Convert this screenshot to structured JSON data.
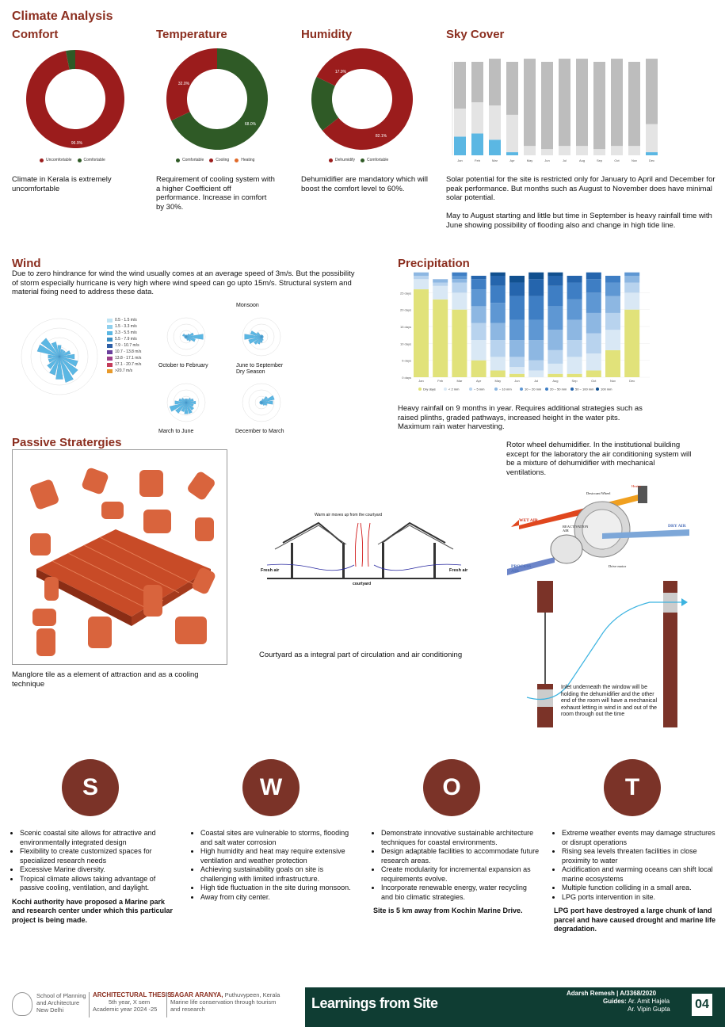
{
  "header": {
    "title": "Climate Analysis"
  },
  "comfort": {
    "title": "Comfort",
    "slice_major": "96.9%",
    "legend": [
      "Uncomfortable",
      "Comfortable"
    ],
    "desc": "Climate in Kerala is extremely uncomfortable",
    "chart_data": {
      "type": "pie",
      "categories": [
        "Uncomfortable",
        "Comfortable"
      ],
      "values": [
        96.9,
        3.1
      ]
    }
  },
  "temperature": {
    "title": "Temperature",
    "slice_a": "32.0%",
    "slice_b": "68.0%",
    "legend": [
      "Comfortable",
      "Cooling",
      "Heating"
    ],
    "desc": "Requirement of cooling system with a higher Coefficient off performance. Increase in comfort by 30%.",
    "chart_data": {
      "type": "pie",
      "categories": [
        "Comfortable",
        "Cooling"
      ],
      "values": [
        68.0,
        32.0
      ]
    }
  },
  "humidity": {
    "title": "Humidity",
    "slice_a": "17.9%",
    "slice_b": "82.1%",
    "legend": [
      "Dehumidify",
      "Comfortable"
    ],
    "desc": "Dehumidifier are mandatory which will boost the comfort level to 60%.",
    "chart_data": {
      "type": "pie",
      "categories": [
        "Dehumidify",
        "Comfortable"
      ],
      "values": [
        82.1,
        17.9
      ]
    }
  },
  "sky": {
    "title": "Sky Cover",
    "desc1": "Solar potential for the site is restricted only for January to April and December for peak performance. But months such as August to November does have minimal solar potential.",
    "desc2": "May to August starting and little but time in September is heavy rainfall time with June showing possibility of flooding also and change in high tide line.",
    "chart_data": {
      "type": "bar",
      "categories": [
        "Jan",
        "Feb",
        "Mar",
        "Apr",
        "May",
        "Jun",
        "Jul",
        "Aug",
        "Sep",
        "Oct",
        "Nov",
        "Dec"
      ],
      "series": [
        {
          "name": "sunny",
          "values": [
            6,
            7,
            5,
            1,
            0,
            0,
            0,
            0,
            0,
            0,
            0,
            1
          ]
        },
        {
          "name": "partly",
          "values": [
            9,
            10,
            11,
            12,
            3,
            2,
            3,
            3,
            2,
            3,
            3,
            9
          ]
        },
        {
          "name": "overcast",
          "values": [
            15,
            13,
            15,
            17,
            28,
            28,
            28,
            28,
            28,
            28,
            27,
            21
          ]
        }
      ]
    }
  },
  "wind": {
    "title": "Wind",
    "desc": "Due to zero hindrance for wind the wind usually comes at an average speed of 3m/s. But the possibility of storm especially hurricane is very high where wind speed can go upto 15m/s. Structural system and material fixing need to address these data.",
    "legend": [
      "0.5 - 1.5 m/s",
      "1.5 - 3.3 m/s",
      "3.3 - 5.5 m/s",
      "5.5 - 7.9 m/s",
      "7.9 - 10.7 m/s",
      "10.7 - 13.8 m/s",
      "13.8 - 17.1 m/s",
      "17.1 - 20.7 m/s",
      ">20.7 m/s"
    ],
    "legend_colors": [
      "#bfe4f4",
      "#8fd0ee",
      "#5bb7e3",
      "#3a8ec4",
      "#2d5fa6",
      "#6a3f9c",
      "#9c3f8a",
      "#c43c5b",
      "#e89a2b"
    ],
    "labels": [
      "Monsoon",
      "October to February",
      "June to September",
      "Dry Season",
      "March to June",
      "December to March"
    ]
  },
  "precip": {
    "title": "Precipitation",
    "desc": "Heavy rainfall on 9 months in year. Requires additional strategies such as raised plinths, graded pathways, increased height in the water pits. Maximum rain water harvesting.",
    "yticks": [
      "25 days",
      "20 days",
      "15 days",
      "10 days",
      "5 days",
      "0 days"
    ],
    "legend": [
      "Dry days",
      "< 2 mm",
      "~ 5 mm",
      "~ 10 mm",
      "10 ~ 20 mm",
      "20 ~ 50 mm",
      "50 ~ 100 mm",
      "100 mm"
    ],
    "colors": [
      "#e1e27a",
      "#d9e8f5",
      "#b8d3ee",
      "#8db7e2",
      "#5e97d3",
      "#3e7ec4",
      "#2565ad",
      "#11508f"
    ],
    "chart_data": {
      "type": "bar",
      "categories": [
        "Jan",
        "Feb",
        "Mar",
        "Apr",
        "May",
        "Jun",
        "Jul",
        "Aug",
        "Sep",
        "Oct",
        "Nov",
        "Dec"
      ],
      "series": [
        {
          "name": "Dry days",
          "values": [
            26,
            23,
            20,
            5,
            2,
            1,
            0,
            1,
            1,
            2,
            8,
            20
          ]
        },
        {
          "name": "< 2 mm",
          "values": [
            3,
            4,
            5,
            6,
            4,
            2,
            2,
            3,
            5,
            5,
            6,
            5
          ]
        },
        {
          "name": "~ 5 mm",
          "values": [
            1,
            1,
            3,
            5,
            5,
            3,
            3,
            4,
            5,
            6,
            5,
            3
          ]
        },
        {
          "name": "~ 10 mm",
          "values": [
            1,
            1,
            1,
            5,
            5,
            5,
            6,
            6,
            6,
            6,
            5,
            2
          ]
        },
        {
          "name": "10 ~ 20 mm",
          "values": [
            0,
            0,
            1,
            5,
            6,
            6,
            6,
            7,
            6,
            6,
            4,
            1
          ]
        },
        {
          "name": "20 ~ 50 mm",
          "values": [
            0,
            0,
            1,
            3,
            5,
            7,
            7,
            6,
            5,
            4,
            2,
            0
          ]
        },
        {
          "name": "50 ~ 100 mm",
          "values": [
            0,
            0,
            0,
            1,
            3,
            4,
            5,
            3,
            2,
            2,
            0,
            0
          ]
        },
        {
          "name": "100 mm",
          "values": [
            0,
            0,
            0,
            0,
            1,
            2,
            2,
            1,
            0,
            0,
            0,
            0
          ]
        }
      ]
    }
  },
  "passive": {
    "title": "Passive Stratergies",
    "tile_caption": "Manglore tile as a element of attraction and as a cooling technique",
    "court_top": "Warm air moves up from the courtyard",
    "court_fresh_left": "Fresh air",
    "court_fresh_right": "Fresh air",
    "court_label": "courtyard",
    "court_caption": "Courtyard as a integral part of circulation and air conditioning",
    "rotor_text": "Rotor wheel dehumidifier. In the institutional building except for the laboratory the air conditioning system will be a mixture of dehumidifier with mechanical ventilations.",
    "rotor_labels": {
      "wet": "WET AIR",
      "dry": "DRY AIR",
      "process": "PROCESS AIR",
      "react": "REACTIVATION AIR",
      "heater": "Heater",
      "desiccant": "Desiccant Wheel",
      "drive": "Drive motor"
    },
    "inlet_text": "Inlet underneath the window will be holding the dehumidifier and the other end of the room will have a mechanical exhaust letting in wind in and out of the room through out the time"
  },
  "swot": [
    {
      "letter": "S",
      "items": [
        "Scenic coastal site allows for attractive and environmentally integrated design",
        "Flexibility to create customized spaces for specialized research needs",
        "Excessive Marine diversity.",
        "Tropical climate allows taking advantage of passive cooling, ventilation, and daylight."
      ],
      "bold": "Kochi authority have proposed a Marine park and research center under which this particular project is being made."
    },
    {
      "letter": "W",
      "items": [
        " Coastal sites are vulnerable to storms, flooding and salt water corrosion",
        "High humidity and heat may require extensive ventilation and weather protection",
        "Achieving sustainability goals on site is challenging with limited infrastructure.",
        "High tide fluctuation in the site during monsoon.",
        "Away from city center."
      ],
      "bold": ""
    },
    {
      "letter": "O",
      "items": [
        "Demonstrate innovative sustainable architecture techniques for coastal environments.",
        "Design adaptable facilities to accommodate future research areas.",
        "Create modularity for incremental expansion as requirements evolve.",
        "Incorporate renewable energy, water recycling and bio climatic strategies."
      ],
      "bold": "Site is 5 km away from Kochin Marine Drive."
    },
    {
      "letter": "T",
      "items": [
        "Extreme weather events may damage structures or disrupt operations",
        "Rising sea levels threaten facilities in close proximity to water",
        "Acidification and warming oceans can shift local marine ecosystems",
        "Multiple function colliding in a small area.",
        "LPG ports intervention in site."
      ],
      "bold": "LPG port have destroyed a large chunk of land parcel and have caused drought and marine life degradation."
    }
  ],
  "footer": {
    "school": [
      "School of Planning",
      "and Architecture",
      "New Delhi"
    ],
    "thesis_title": "ARCHITECTURAL THESIS",
    "thesis_sub": [
      "5th year, X sem",
      "Academic year 2024 -25"
    ],
    "project_title": "SAGAR ARANYA,",
    "project_loc": "Puthuvypeen, Kerala",
    "project_sub": [
      "Marine life conservation through tourism",
      "and research"
    ],
    "banner": "Learnings from Site",
    "student": "Adarsh Remesh | A/3368/2020",
    "guides_label": "Guides:",
    "guide1": "Ar. Amit Hajela",
    "guide2": "Ar. Vipin Gupta",
    "page": "04"
  }
}
